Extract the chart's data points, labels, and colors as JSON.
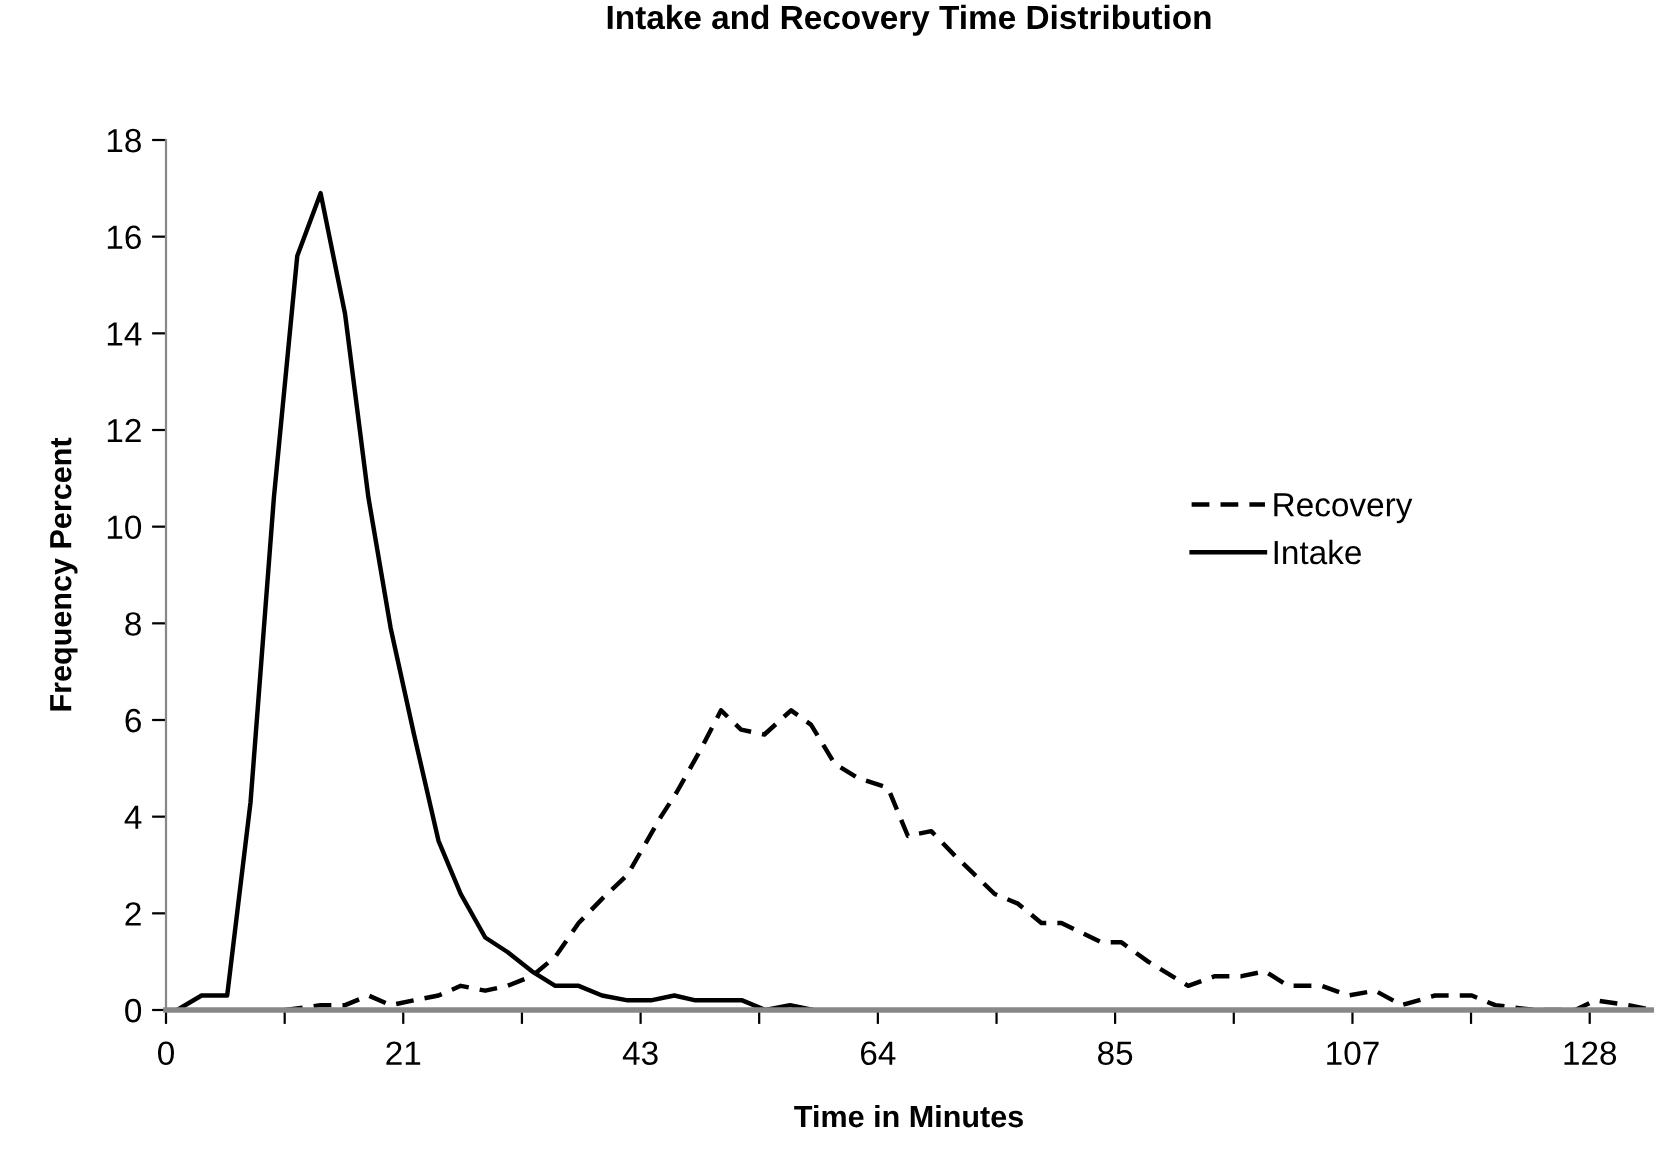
{
  "chart_data": {
    "type": "line",
    "title": "Intake and Recovery Time Distribution",
    "xlabel": "Time in Minutes",
    "ylabel": "Frequency Percent",
    "xlim": [
      0,
      133.6
    ],
    "ylim": [
      0,
      18
    ],
    "xticks": [
      0,
      {
        "value": 10.67,
        "label": null
      },
      {
        "value": 21.33,
        "label": "21"
      },
      {
        "value": 32,
        "label": null
      },
      {
        "value": 42.67,
        "label": "43"
      },
      {
        "value": 53.33,
        "label": null
      },
      64,
      {
        "value": 74.67,
        "label": null
      },
      {
        "value": 85.33,
        "label": "85"
      },
      {
        "value": 96,
        "label": null
      },
      {
        "value": 106.67,
        "label": "107"
      },
      {
        "value": 117.33,
        "label": null
      },
      128
    ],
    "yticks": [
      0,
      2,
      4,
      6,
      8,
      10,
      12,
      14,
      16,
      18
    ],
    "grid": false,
    "legend": "right",
    "marker": "none",
    "series": [
      {
        "name": "Recovery",
        "color": "#000000",
        "line_style": "dashed",
        "x": [
          10.7,
          13.9,
          16.1,
          18.2,
          20.2,
          22.3,
          24.5,
          26.5,
          28.7,
          30.7,
          32.9,
          35.0,
          37.1,
          39.2,
          41.5,
          44.5,
          45.9,
          48.1,
          49.9,
          51.7,
          53.8,
          56.2,
          58.0,
          60.1,
          62.2,
          64.9,
          66.7,
          68.8,
          70.9,
          72.7,
          74.5,
          76.6,
          78.7,
          80.5,
          84.1,
          85.9,
          88.3,
          91.9,
          94.3,
          96.7,
          98.8,
          100.9,
          103.9,
          106.3,
          108.7,
          111.1,
          114.1,
          117.4,
          119.5,
          123.1,
          126.7,
          128.5,
          131.5,
          133.6
        ],
        "values": [
          0,
          0.1,
          0.1,
          0.3,
          0.1,
          0.2,
          0.3,
          0.5,
          0.4,
          0.5,
          0.7,
          1.1,
          1.8,
          2.3,
          2.8,
          4.0,
          4.5,
          5.4,
          6.2,
          5.8,
          5.7,
          6.2,
          5.9,
          5.1,
          4.8,
          4.6,
          3.6,
          3.7,
          3.2,
          2.8,
          2.4,
          2.2,
          1.8,
          1.8,
          1.4,
          1.4,
          1.0,
          0.5,
          0.7,
          0.7,
          0.8,
          0.5,
          0.5,
          0.3,
          0.4,
          0.1,
          0.3,
          0.3,
          0.1,
          0.0,
          0.0,
          0.2,
          0.1,
          0.0
        ]
      },
      {
        "name": "Intake",
        "color": "#000000",
        "line_style": "solid",
        "x": [
          1.0,
          3.2,
          5.5,
          7.6,
          9.7,
          11.8,
          13.9,
          16.1,
          18.2,
          20.2,
          22.3,
          24.5,
          26.5,
          28.7,
          30.7,
          32.9,
          35.0,
          37.1,
          39.2,
          41.5,
          43.6,
          45.7,
          47.6,
          49.7,
          51.8,
          53.9,
          56.1,
          58.2
        ],
        "values": [
          0,
          0.3,
          0.3,
          4.3,
          10.6,
          15.6,
          16.9,
          14.4,
          10.6,
          7.9,
          5.7,
          3.5,
          2.4,
          1.5,
          1.2,
          0.8,
          0.5,
          0.5,
          0.3,
          0.2,
          0.2,
          0.3,
          0.2,
          0.2,
          0.2,
          0.0,
          0.1,
          0
        ]
      }
    ]
  }
}
